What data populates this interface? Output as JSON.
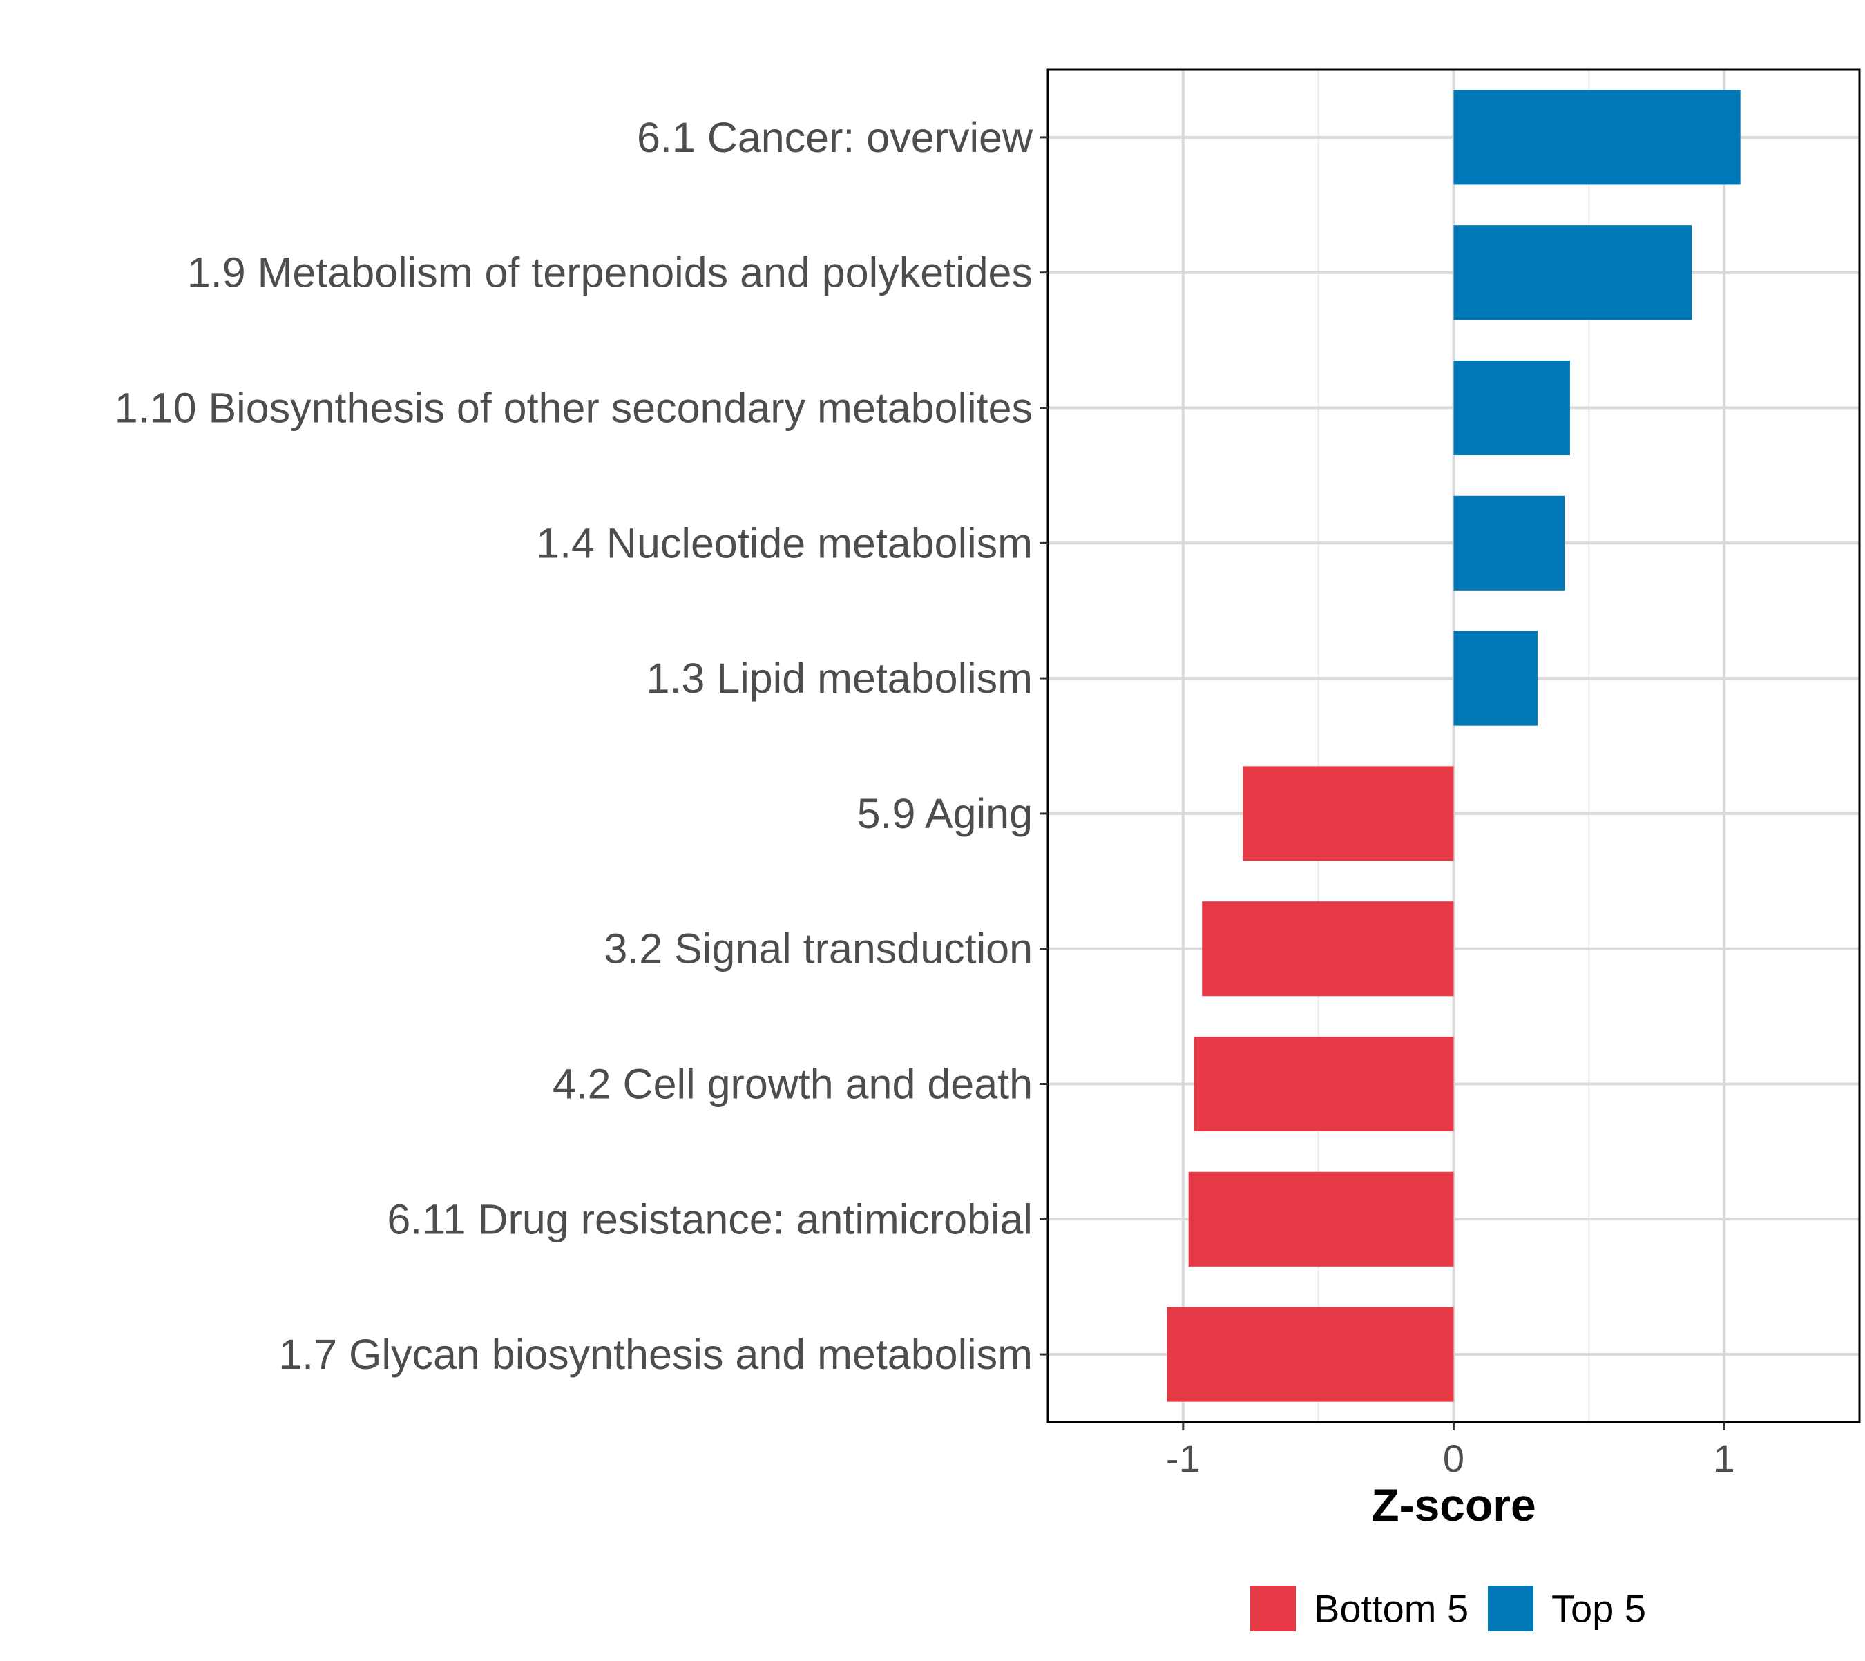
{
  "chart_data": {
    "type": "bar",
    "orientation": "horizontal",
    "title": "",
    "xlabel": "Z-score",
    "ylabel": "",
    "xlim": [
      -1.5,
      1.5
    ],
    "xticks": [
      -1,
      0,
      1
    ],
    "xtick_labels": [
      "-1",
      "0",
      "1"
    ],
    "grid": true,
    "legend_position": "bottom",
    "categories": [
      "6.1 Cancer: overview",
      "1.9 Metabolism of terpenoids and polyketides",
      "1.10 Biosynthesis of other secondary metabolites",
      "1.4 Nucleotide metabolism",
      "1.3 Lipid metabolism",
      "5.9 Aging",
      "3.2 Signal transduction",
      "4.2 Cell growth and death",
      "6.11 Drug resistance: antimicrobial",
      "1.7 Glycan biosynthesis and metabolism"
    ],
    "values": [
      1.06,
      0.88,
      0.43,
      0.41,
      0.31,
      -0.78,
      -0.93,
      -0.96,
      -0.98,
      -1.06
    ],
    "groups": [
      "Top 5",
      "Top 5",
      "Top 5",
      "Top 5",
      "Top 5",
      "Bottom 5",
      "Bottom 5",
      "Bottom 5",
      "Bottom 5",
      "Bottom 5"
    ],
    "legend": [
      {
        "name": "Bottom 5",
        "color": "#E63946"
      },
      {
        "name": "Top 5",
        "color": "#0077B6"
      }
    ]
  }
}
